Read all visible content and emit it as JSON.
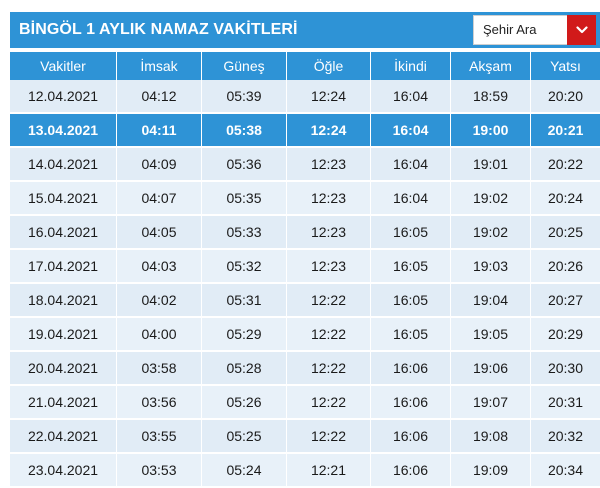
{
  "page": {
    "title": "BİNGÖL 1 AYLIK NAMAZ VAKİTLERİ",
    "city_select_label": "Şehir Ara",
    "accent_color": "#2e93d6",
    "select_button_color": "#d11a1a"
  },
  "table": {
    "headers": [
      "Vakitler",
      "İmsak",
      "Güneş",
      "Öğle",
      "İkindi",
      "Akşam",
      "Yatsı"
    ],
    "active_row_index": 1,
    "rows": [
      [
        "12.04.2021",
        "04:12",
        "05:39",
        "12:24",
        "16:04",
        "18:59",
        "20:20"
      ],
      [
        "13.04.2021",
        "04:11",
        "05:38",
        "12:24",
        "16:04",
        "19:00",
        "20:21"
      ],
      [
        "14.04.2021",
        "04:09",
        "05:36",
        "12:23",
        "16:04",
        "19:01",
        "20:22"
      ],
      [
        "15.04.2021",
        "04:07",
        "05:35",
        "12:23",
        "16:04",
        "19:02",
        "20:24"
      ],
      [
        "16.04.2021",
        "04:05",
        "05:33",
        "12:23",
        "16:05",
        "19:02",
        "20:25"
      ],
      [
        "17.04.2021",
        "04:03",
        "05:32",
        "12:23",
        "16:05",
        "19:03",
        "20:26"
      ],
      [
        "18.04.2021",
        "04:02",
        "05:31",
        "12:22",
        "16:05",
        "19:04",
        "20:27"
      ],
      [
        "19.04.2021",
        "04:00",
        "05:29",
        "12:22",
        "16:05",
        "19:05",
        "20:29"
      ],
      [
        "20.04.2021",
        "03:58",
        "05:28",
        "12:22",
        "16:06",
        "19:06",
        "20:30"
      ],
      [
        "21.04.2021",
        "03:56",
        "05:26",
        "12:22",
        "16:06",
        "19:07",
        "20:31"
      ],
      [
        "22.04.2021",
        "03:55",
        "05:25",
        "12:22",
        "16:06",
        "19:08",
        "20:32"
      ],
      [
        "23.04.2021",
        "03:53",
        "05:24",
        "12:21",
        "16:06",
        "19:09",
        "20:34"
      ]
    ]
  }
}
